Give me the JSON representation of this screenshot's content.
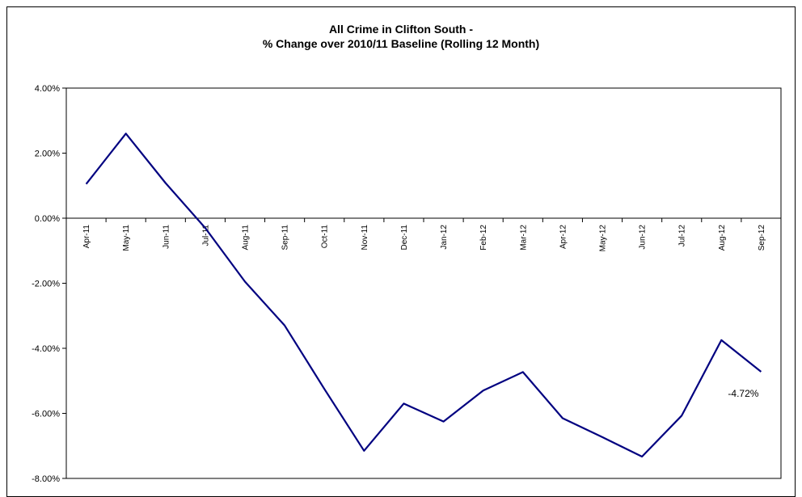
{
  "chart_data": {
    "type": "line",
    "title": [
      "All Crime in Clifton South -",
      "% Change over 2010/11 Baseline (Rolling 12 Month)"
    ],
    "xlabel": "",
    "ylabel": "",
    "categories": [
      "Apr-11",
      "May-11",
      "Jun-11",
      "Jul-11",
      "Aug-11",
      "Sep-11",
      "Oct-11",
      "Nov-11",
      "Dec-11",
      "Jan-12",
      "Feb-12",
      "Mar-12",
      "Apr-12",
      "May-12",
      "Jun-12",
      "Jul-12",
      "Aug-12",
      "Sep-12"
    ],
    "series": [
      {
        "name": "",
        "color": "#000080",
        "values": [
          1.05,
          2.6,
          1.08,
          -0.3,
          -1.95,
          -3.3,
          -5.25,
          -7.15,
          -5.7,
          -6.25,
          -5.3,
          -4.73,
          -6.15,
          -6.73,
          -7.33,
          -6.07,
          -3.75,
          -4.72
        ]
      }
    ],
    "ylim": [
      -8,
      4
    ],
    "yticks": [
      4,
      2,
      0,
      -2,
      -4,
      -6,
      -8
    ],
    "ytick_labels": [
      "4.00%",
      "2.00%",
      "0.00%",
      "-2.00%",
      "-4.00%",
      "-6.00%",
      "-8.00%"
    ],
    "grid": false,
    "legend": "none",
    "annotations": [
      {
        "category": "Sep-12",
        "text": "-4.72%"
      }
    ]
  }
}
